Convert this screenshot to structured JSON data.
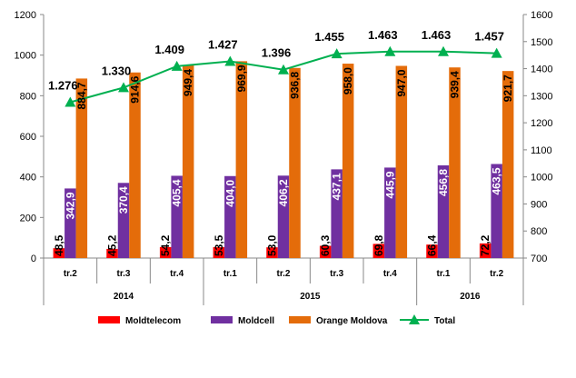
{
  "chart_data": {
    "type": "bar",
    "categories": [
      "tr.2",
      "tr.3",
      "tr.4",
      "tr.1",
      "tr.2",
      "tr.3",
      "tr.4",
      "tr.1",
      "tr.2"
    ],
    "groups": [
      {
        "label": "2014",
        "span": 3
      },
      {
        "label": "2015",
        "span": 4
      },
      {
        "label": "2016",
        "span": 2
      }
    ],
    "series": [
      {
        "name": "Moldtelecom",
        "color": "#ff0000",
        "axis": "left",
        "values": [
          48.5,
          45.2,
          54.2,
          53.5,
          53.0,
          60.3,
          69.8,
          66.4,
          72.2
        ],
        "labels": [
          "48,5",
          "45,2",
          "54,2",
          "53,5",
          "53,0",
          "60,3",
          "69,8",
          "66,4",
          "72,2"
        ]
      },
      {
        "name": "Moldcell",
        "color": "#7030a0",
        "axis": "left",
        "values": [
          342.9,
          370.4,
          405.4,
          404.0,
          406.2,
          437.1,
          445.9,
          456.8,
          463.5
        ],
        "labels": [
          "342,9",
          "370,4",
          "405,4",
          "404,0",
          "406,2",
          "437,1",
          "445,9",
          "456,8",
          "463,5"
        ]
      },
      {
        "name": "Orange Moldova",
        "color": "#e46c0a",
        "axis": "left",
        "values": [
          884.7,
          914.6,
          949.4,
          969.9,
          936.8,
          958.0,
          947.0,
          939.4,
          921.7
        ],
        "labels": [
          "884,7",
          "914,6",
          "949,4",
          "969,9",
          "936,8",
          "958,0",
          "947,0",
          "939,4",
          "921,7"
        ]
      },
      {
        "name": "Total",
        "color": "#00b050",
        "axis": "right",
        "type": "line",
        "values": [
          1276,
          1330,
          1409,
          1427,
          1396,
          1455,
          1463,
          1463,
          1457
        ],
        "labels": [
          "1.276",
          "1.330",
          "1.409",
          "1.427",
          "1.396",
          "1.455",
          "1.463",
          "1.463",
          "1.457"
        ]
      }
    ],
    "y_left": {
      "min": 0,
      "max": 1200,
      "step": 200
    },
    "y_right": {
      "min": 700,
      "max": 1600,
      "step": 100
    },
    "legend_position": "bottom"
  }
}
